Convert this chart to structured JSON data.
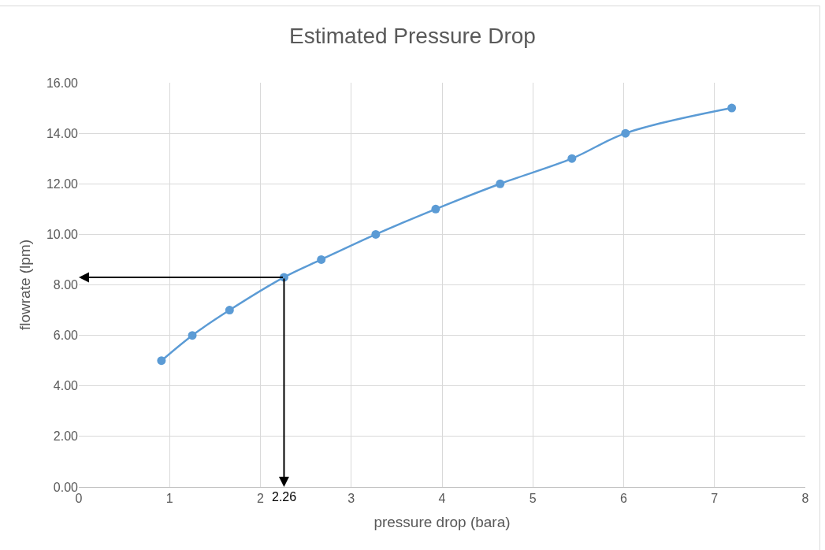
{
  "chart_data": {
    "type": "line",
    "title": "Estimated Pressure Drop",
    "xlabel": "pressure drop (bara)",
    "ylabel": "flowrate (lpm)",
    "x": [
      0.91,
      1.25,
      1.66,
      2.26,
      2.67,
      3.27,
      3.93,
      4.64,
      5.43,
      6.02,
      7.19
    ],
    "series": [
      {
        "color": "#5b9bd5",
        "values": [
          5,
          6,
          7,
          8.3,
          9,
          10,
          11,
          12,
          13,
          14,
          15
        ]
      }
    ],
    "xlim": [
      0,
      8
    ],
    "xticks": [
      0,
      1,
      2,
      3,
      4,
      5,
      6,
      7,
      8
    ],
    "ylim": [
      0,
      16
    ],
    "yticks": [
      {
        "value": 0,
        "label": "0.00"
      },
      {
        "value": 2,
        "label": "2.00"
      },
      {
        "value": 4,
        "label": "4.00"
      },
      {
        "value": 6,
        "label": "6.00"
      },
      {
        "value": 8,
        "label": "8.00"
      },
      {
        "value": 10,
        "label": "10.00"
      },
      {
        "value": 12,
        "label": "12.00"
      },
      {
        "value": 14,
        "label": "14.00"
      },
      {
        "value": 16,
        "label": "16.00"
      }
    ],
    "annotations": [
      {
        "text": "2.26",
        "x": 2.26,
        "y": 8.3
      }
    ],
    "grid": true,
    "marker": "circle",
    "line_style": "solid"
  }
}
